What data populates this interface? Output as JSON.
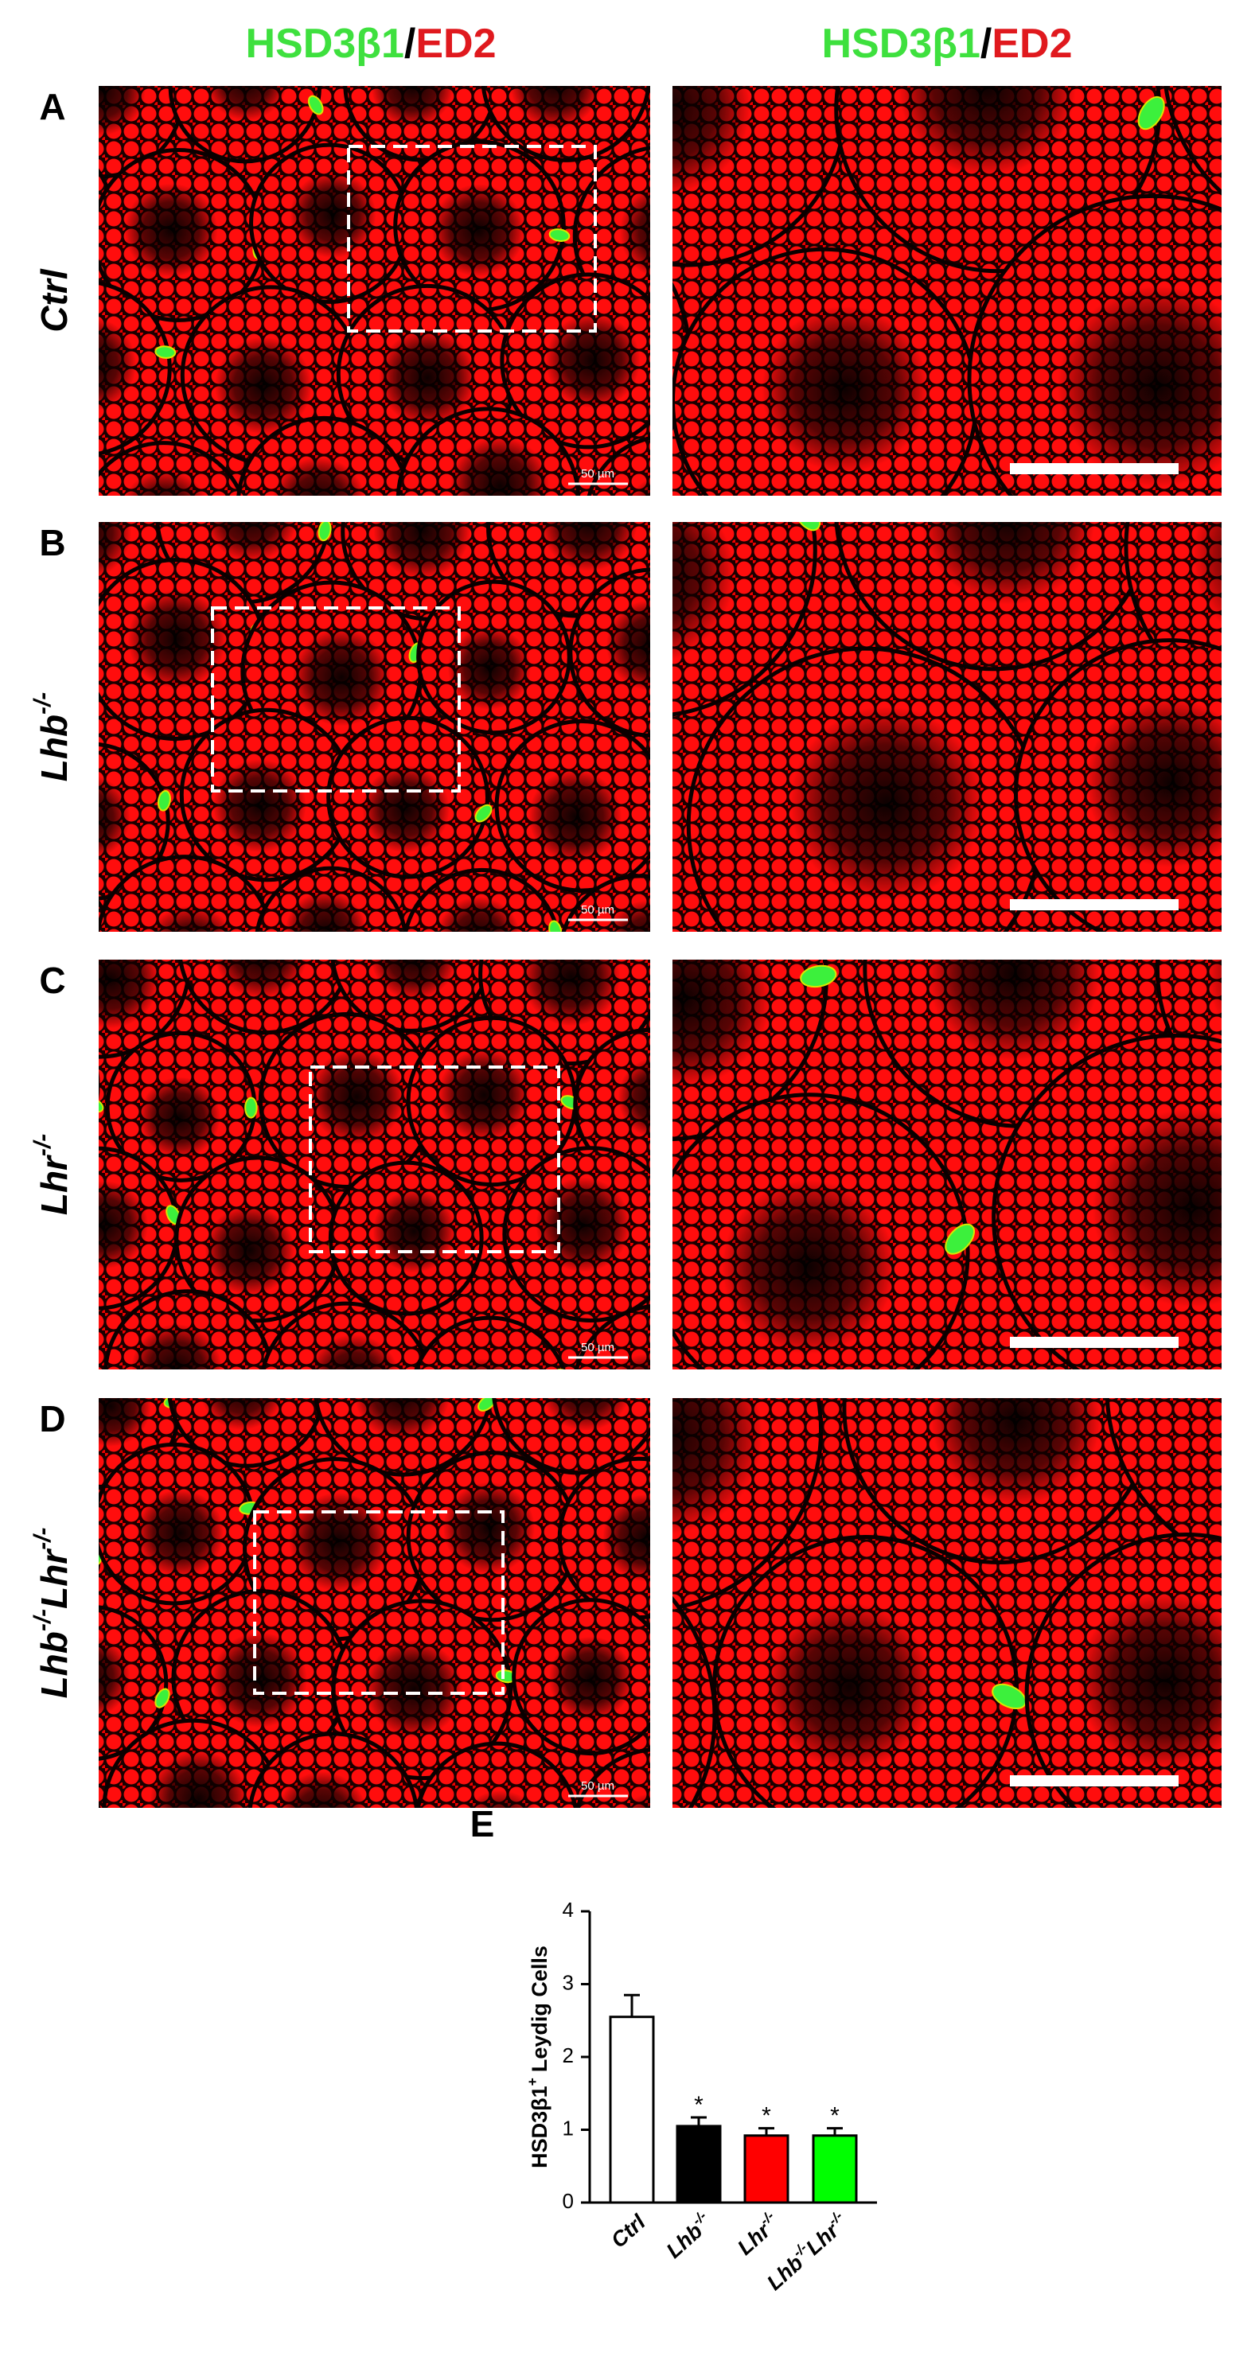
{
  "column_headers": [
    [
      "HSD3β1",
      "/",
      "ED2"
    ],
    [
      "HSD3β1",
      "/",
      "ED2"
    ]
  ],
  "panels": [
    {
      "letter": "A",
      "label": [
        "Ctrl"
      ],
      "scale_label": "50 µm"
    },
    {
      "letter": "B",
      "label": [
        "Lhb",
        "-/-"
      ],
      "scale_label": "50 µm"
    },
    {
      "letter": "C",
      "label": [
        "Lhr",
        "-/-"
      ],
      "scale_label": "50 µm"
    },
    {
      "letter": "D",
      "label": [
        "Lhb",
        "-/-",
        "Lhr",
        "-/-"
      ],
      "scale_label": "50 µm"
    }
  ],
  "chart_data": {
    "type": "bar",
    "letter": "E",
    "y_label": [
      "HSD3β1",
      "+",
      "Leydig Cells"
    ],
    "categories": [
      [
        "Ctrl"
      ],
      [
        "Lhb",
        "-/-"
      ],
      [
        "Lhr",
        "-/-"
      ],
      [
        "Lhb",
        "-/-",
        "Lhr",
        "-/-"
      ]
    ],
    "values": [
      2.55,
      1.05,
      0.92,
      0.92
    ],
    "errors": [
      0.3,
      0.12,
      0.1,
      0.1
    ],
    "colors": [
      "#ffffff",
      "#000000",
      "#ff0000",
      "#00ff00"
    ],
    "significance": [
      null,
      "*",
      "*",
      "*"
    ],
    "ylim": [
      0,
      4
    ],
    "yticks": [
      0,
      1,
      2,
      3,
      4
    ]
  }
}
